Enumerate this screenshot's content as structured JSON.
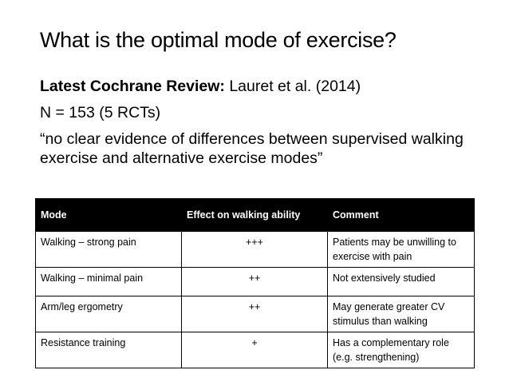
{
  "title": "What is the optimal mode of exercise?",
  "review": {
    "label": "Latest Cochrane Review:",
    "citation": " Lauret et al. (2014)"
  },
  "sample": "N = 153 (5 RCTs)",
  "quote": "“no clear evidence of differences between supervised walking exercise and alternative exercise modes”",
  "table": {
    "headers": [
      "Mode",
      "Effect on walking ability",
      "Comment"
    ],
    "rows": [
      {
        "mode": "Walking – strong pain",
        "effect": "+++",
        "comment": "Patients may be unwilling to exercise with pain"
      },
      {
        "mode": "Walking – minimal pain",
        "effect": "++",
        "comment": "Not extensively studied"
      },
      {
        "mode": "Arm/leg ergometry",
        "effect": "++",
        "comment": "May generate greater CV stimulus than walking"
      },
      {
        "mode": "Resistance training",
        "effect": "+",
        "comment": "Has a complementary role (e.g. strengthening)"
      }
    ]
  }
}
